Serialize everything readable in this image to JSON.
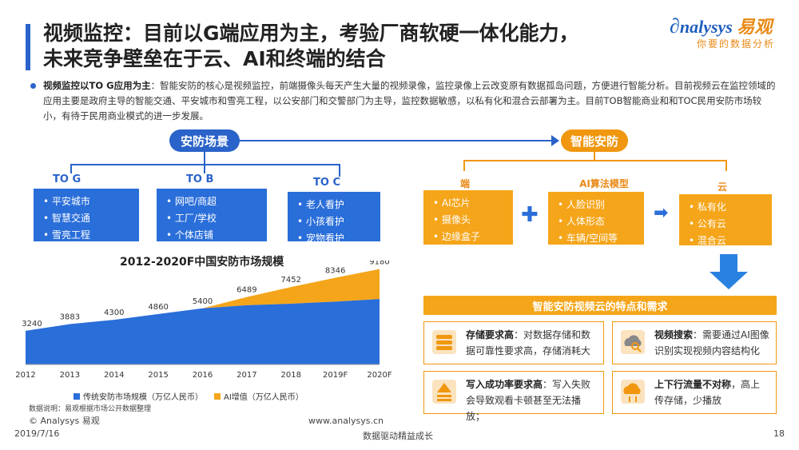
{
  "title": {
    "line1": "视频监控：目前以G端应用为主，考验厂商软硬一体化能力，",
    "line2": "未来竞争壁垒在于云、AI和终端的结合"
  },
  "logo": {
    "name_prefix": "nalysys",
    "name_cn": "易观",
    "slogan": "你要的数据分析"
  },
  "summary": {
    "bold": "视频监控以TO  G应用为主",
    "text": "：智能安防的核心是视频监控，前端摄像头每天产生大量的视频录像，监控录像上云改变原有数据孤岛问题，方便进行智能分析。目前视频云在监控领域的应用主要是政府主导的智能交通、平安城市和雪亮工程，以公安部门和交警部门为主导，监控数据敏感，以私有化和混合云部署为主。目前TOB智能商业和和TOC民用安防市场较小，有待于民用商业模式的进一步发展。"
  },
  "left": {
    "header": "安防场景",
    "groups": [
      {
        "label": "TO G",
        "items": [
          "平安城市",
          "智慧交通",
          "雪亮工程"
        ]
      },
      {
        "label": "TO B",
        "items": [
          "网吧/商超",
          "工厂/学校",
          "个体店铺"
        ]
      },
      {
        "label": "TO C",
        "items": [
          "老人看护",
          "小孩看护",
          "宠物看护"
        ]
      }
    ]
  },
  "right": {
    "header": "智能安防",
    "groups": [
      {
        "label": "端",
        "items": [
          "AI芯片",
          "摄像头",
          "边缘盒子"
        ]
      },
      {
        "label": "AI算法模型",
        "items": [
          "人脸识别",
          "人体形态",
          "车辆/空间等"
        ]
      },
      {
        "label": "云",
        "items": [
          "私有化",
          "公有云",
          "混合云"
        ]
      }
    ],
    "banner": "智能安防视频云的特点和需求",
    "features": [
      {
        "bold": "存储要求高",
        "text": "：对数据存储和数据可靠性要求高，存储消耗大",
        "icon": "database-icon"
      },
      {
        "bold": "视频搜索",
        "text": "：需要通过AI图像识别实现视频内容结构化",
        "icon": "cloud-search-icon"
      },
      {
        "bold": "写入成功率要求高",
        "text": "：写入失败会导致观看卡顿甚至无法播放；",
        "icon": "write-icon"
      },
      {
        "bold": "上下行流量不对称",
        "text": "，高上传存储，少播放",
        "icon": "cloud-traffic-icon"
      }
    ]
  },
  "chart_data": {
    "type": "area",
    "title": "2012-2020F中国安防市场规模",
    "categories": [
      "2012",
      "2013",
      "2014",
      "2015",
      "2016",
      "2017",
      "2018",
      "2019F",
      "2020F"
    ],
    "totals": [
      3240,
      3883,
      4300,
      4860,
      5400,
      6489,
      7452,
      8346,
      9180
    ],
    "series": [
      {
        "name": "传统安防市场规模（万亿人民币）",
        "color": "#2a6ed9",
        "values": [
          3240,
          3883,
          4300,
          4860,
          5400,
          5700,
          5850,
          6050,
          6300
        ]
      },
      {
        "name": "AI增值（万亿人民币）",
        "color": "#f5a51a",
        "values": [
          0,
          0,
          0,
          0,
          0,
          789,
          1602,
          2296,
          2880
        ]
      }
    ],
    "ylim": [
      0,
      10000
    ],
    "note": "数据说明：易观根据市场公开数据整理"
  },
  "footer": {
    "copyright": "© Analysys 易观",
    "date": "2019/7/16",
    "url": "www.analysys.cn",
    "tagline": "数据驱动精益成长",
    "page": "18"
  }
}
